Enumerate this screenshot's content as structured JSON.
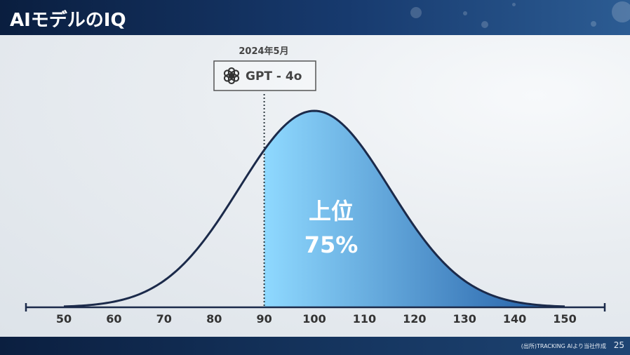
{
  "header": {
    "title": "AIモデルのIQ"
  },
  "footer": {
    "source": "(出所)TRACKING AIより当社作成",
    "page_number": "25"
  },
  "chart_data": {
    "type": "area",
    "title": "",
    "xlabel": "",
    "ylabel": "",
    "x_ticks": [
      50,
      60,
      70,
      80,
      90,
      100,
      110,
      120,
      130,
      140,
      150
    ],
    "xlim": [
      50,
      150
    ],
    "distribution": {
      "mean": 100,
      "sd": 15
    },
    "marker": {
      "x": 90,
      "date": "2024年5月",
      "model": "GPT - 4o",
      "icon": "openai-logo-icon"
    },
    "shaded_region": {
      "from": 90,
      "to": 150
    },
    "annotation": {
      "line1": "上位",
      "line2": "75%"
    },
    "grid": false,
    "colors": {
      "curve": "#1b2a4a",
      "fill_left": "#8fd9ff",
      "fill_right": "#1f5aa3",
      "axis": "#1b2a4a"
    }
  }
}
